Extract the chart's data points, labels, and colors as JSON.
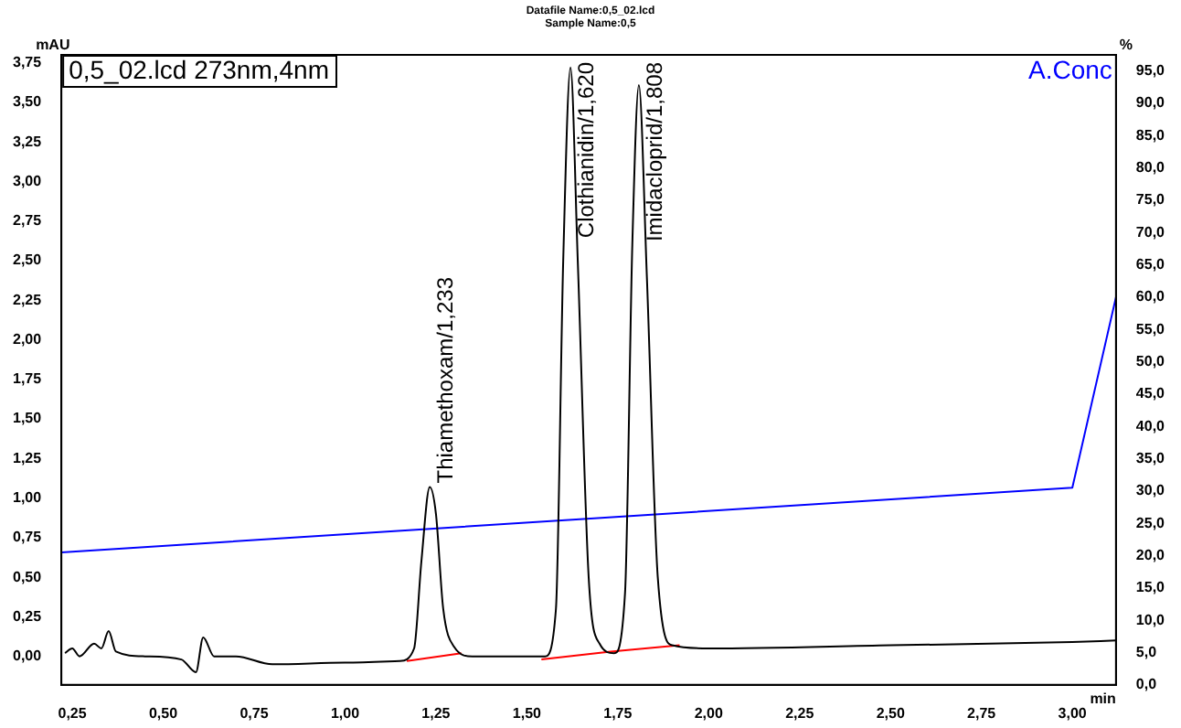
{
  "chart_data": {
    "type": "line",
    "title": "Datafile Name:0,5_02.lcd",
    "subtitle": "Sample Name:0,5",
    "xlabel": "min",
    "ylabel": "mAU",
    "y2label": "%",
    "xlim": [
      0.22,
      3.12
    ],
    "xticks": [
      {
        "value": 0.25,
        "label": "0,25"
      },
      {
        "value": 0.5,
        "label": "0,50"
      },
      {
        "value": 0.75,
        "label": "0,75"
      },
      {
        "value": 1.0,
        "label": "1,00"
      },
      {
        "value": 1.25,
        "label": "1,25"
      },
      {
        "value": 1.5,
        "label": "1,50"
      },
      {
        "value": 1.75,
        "label": "1,75"
      },
      {
        "value": 2.0,
        "label": "2,00"
      },
      {
        "value": 2.25,
        "label": "2,25"
      },
      {
        "value": 2.5,
        "label": "2,50"
      },
      {
        "value": 2.75,
        "label": "2,75"
      },
      {
        "value": 3.0,
        "label": "3,00"
      }
    ],
    "ylim": [
      -0.18,
      3.8
    ],
    "yticks": [
      {
        "value": 0,
        "label": "0,00"
      },
      {
        "value": 0.25,
        "label": "0,25"
      },
      {
        "value": 0.5,
        "label": "0,50"
      },
      {
        "value": 0.75,
        "label": "0,75"
      },
      {
        "value": 1.0,
        "label": "1,00"
      },
      {
        "value": 1.25,
        "label": "1,25"
      },
      {
        "value": 1.5,
        "label": "1,50"
      },
      {
        "value": 1.75,
        "label": "1,75"
      },
      {
        "value": 2.0,
        "label": "2,00"
      },
      {
        "value": 2.25,
        "label": "2,25"
      },
      {
        "value": 2.5,
        "label": "2,50"
      },
      {
        "value": 2.75,
        "label": "2,75"
      },
      {
        "value": 3.0,
        "label": "3,00"
      },
      {
        "value": 3.25,
        "label": "3,25"
      },
      {
        "value": 3.5,
        "label": "3,50"
      },
      {
        "value": 3.75,
        "label": "3,75"
      }
    ],
    "y2lim": [
      0,
      97.5
    ],
    "y2ticks": [
      {
        "value": 0,
        "label": "0,0"
      },
      {
        "value": 5,
        "label": "5,0"
      },
      {
        "value": 10,
        "label": "10,0"
      },
      {
        "value": 15,
        "label": "15,0"
      },
      {
        "value": 20,
        "label": "20,0"
      },
      {
        "value": 25,
        "label": "25,0"
      },
      {
        "value": 30,
        "label": "30,0"
      },
      {
        "value": 35,
        "label": "35,0"
      },
      {
        "value": 40,
        "label": "40,0"
      },
      {
        "value": 45,
        "label": "45,0"
      },
      {
        "value": 50,
        "label": "50,0"
      },
      {
        "value": 55,
        "label": "55,0"
      },
      {
        "value": 60,
        "label": "60,0"
      },
      {
        "value": 65,
        "label": "65,0"
      },
      {
        "value": 70,
        "label": "70,0"
      },
      {
        "value": 75,
        "label": "75,0"
      },
      {
        "value": 80,
        "label": "80,0"
      },
      {
        "value": 85,
        "label": "85,0"
      },
      {
        "value": 90,
        "label": "90,0"
      },
      {
        "value": 95,
        "label": "95,0"
      }
    ],
    "grid": false,
    "legend": false,
    "marker": "none",
    "line_style": "solid",
    "series": [
      {
        "name": "0,5_02.lcd 273nm,4nm",
        "color": "#000000",
        "x": [
          0.23,
          0.25,
          0.27,
          0.31,
          0.33,
          0.35,
          0.37,
          0.45,
          0.55,
          0.59,
          0.61,
          0.64,
          0.7,
          0.8,
          1.0,
          1.15,
          1.19,
          1.21,
          1.233,
          1.25,
          1.27,
          1.3,
          1.35,
          1.55,
          1.58,
          1.6,
          1.62,
          1.64,
          1.67,
          1.7,
          1.74,
          1.77,
          1.79,
          1.808,
          1.83,
          1.86,
          1.9,
          2.0,
          2.5,
          3.0,
          3.12
        ],
        "values": [
          0.02,
          0.05,
          0.0,
          0.08,
          0.05,
          0.16,
          0.03,
          0.0,
          -0.02,
          -0.1,
          0.12,
          0.0,
          0.0,
          -0.05,
          -0.04,
          -0.03,
          0.05,
          0.6,
          1.07,
          0.9,
          0.3,
          0.06,
          0.0,
          0.0,
          0.3,
          2.5,
          3.72,
          2.5,
          0.5,
          0.08,
          0.02,
          0.4,
          2.6,
          3.61,
          2.4,
          0.5,
          0.07,
          0.05,
          0.07,
          0.09,
          0.1
        ]
      },
      {
        "color": "#ff0000",
        "x": [
          1.17,
          1.32,
          1.4,
          1.54,
          1.73,
          1.92
        ],
        "values": [
          -0.03,
          0.02,
          null,
          -0.02,
          0.03,
          0.07
        ]
      },
      {
        "name": "A.Conc",
        "color": "#0000ff",
        "axis": "y2",
        "x": [
          0.22,
          3.0,
          3.12
        ],
        "values": [
          20.5,
          30.5,
          60
        ]
      }
    ],
    "annotations": [
      {
        "text": "Thiamethoxam/1,233",
        "x": 1.233,
        "y": 1.07
      },
      {
        "text": "Clothianidin/1,620",
        "x": 1.62,
        "y": 3.72
      },
      {
        "text": "Imidacloprid/1,808",
        "x": 1.808,
        "y": 3.61
      }
    ]
  }
}
